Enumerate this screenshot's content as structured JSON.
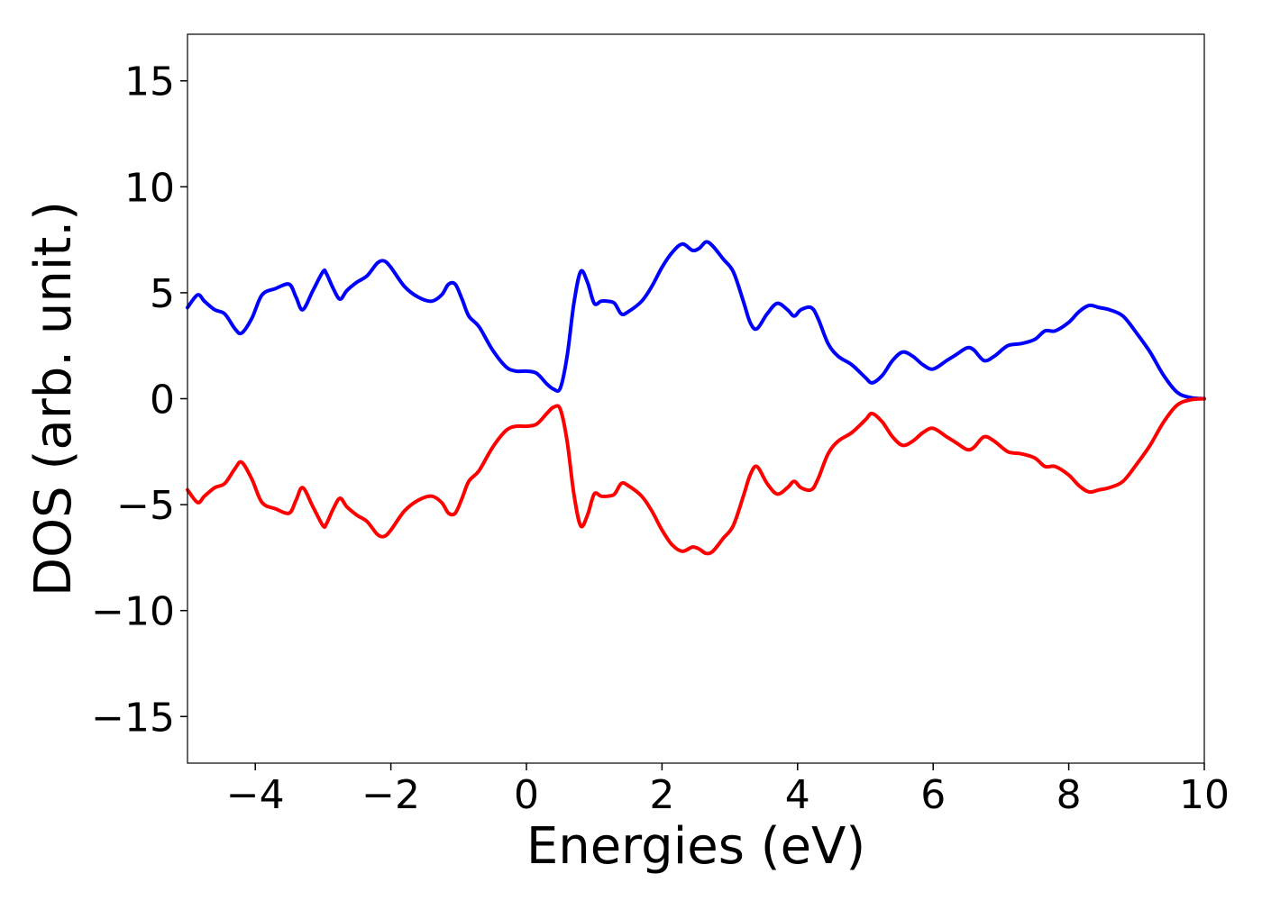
{
  "chart_data": {
    "type": "line",
    "title": "",
    "xlabel": "Energies (eV)",
    "ylabel": "DOS (arb. unit.)",
    "xlim": [
      -5,
      10
    ],
    "ylim": [
      -17.2,
      17.2
    ],
    "grid": false,
    "x_ticks": [
      -4,
      -2,
      0,
      2,
      4,
      6,
      8,
      10
    ],
    "x_tick_labels": [
      "−4",
      "−2",
      "0",
      "2",
      "4",
      "6",
      "8",
      "10"
    ],
    "y_ticks": [
      -15,
      -10,
      -5,
      0,
      5,
      10,
      15
    ],
    "y_tick_labels": [
      "−15",
      "−10",
      "−5",
      "0",
      "5",
      "10",
      "15"
    ],
    "series": [
      {
        "color": "#0000ff",
        "x": [
          -5.0,
          -4.85,
          -4.75,
          -4.6,
          -4.45,
          -4.3,
          -4.2,
          -4.05,
          -3.9,
          -3.7,
          -3.5,
          -3.4,
          -3.3,
          -3.15,
          -3.0,
          -2.95,
          -2.85,
          -2.75,
          -2.65,
          -2.5,
          -2.35,
          -2.2,
          -2.1,
          -2.0,
          -1.8,
          -1.6,
          -1.4,
          -1.25,
          -1.15,
          -1.05,
          -0.95,
          -0.85,
          -0.7,
          -0.5,
          -0.3,
          -0.15,
          0.0,
          0.15,
          0.3,
          0.4,
          0.5,
          0.6,
          0.7,
          0.8,
          0.9,
          1.0,
          1.1,
          1.2,
          1.3,
          1.4,
          1.5,
          1.7,
          1.85,
          2.0,
          2.15,
          2.3,
          2.45,
          2.55,
          2.65,
          2.75,
          2.9,
          3.05,
          3.2,
          3.3,
          3.4,
          3.55,
          3.7,
          3.85,
          3.95,
          4.05,
          4.2,
          4.3,
          4.45,
          4.6,
          4.8,
          5.0,
          5.1,
          5.25,
          5.4,
          5.55,
          5.7,
          5.85,
          6.0,
          6.2,
          6.35,
          6.5,
          6.6,
          6.75,
          6.9,
          7.1,
          7.3,
          7.5,
          7.65,
          7.8,
          8.0,
          8.15,
          8.3,
          8.45,
          8.6,
          8.8,
          9.0,
          9.2,
          9.4,
          9.6,
          9.8,
          10.0
        ],
        "y": [
          4.3,
          4.9,
          4.6,
          4.2,
          4.0,
          3.3,
          3.1,
          3.8,
          4.9,
          5.2,
          5.4,
          4.8,
          4.2,
          5.1,
          6.0,
          5.9,
          5.2,
          4.7,
          5.1,
          5.5,
          5.8,
          6.4,
          6.5,
          6.2,
          5.3,
          4.8,
          4.6,
          4.9,
          5.4,
          5.4,
          4.7,
          3.9,
          3.4,
          2.3,
          1.5,
          1.3,
          1.3,
          1.2,
          0.7,
          0.45,
          0.5,
          2.0,
          4.5,
          6.0,
          5.5,
          4.5,
          4.6,
          4.6,
          4.5,
          4.0,
          4.1,
          4.6,
          5.3,
          6.2,
          6.9,
          7.3,
          7.0,
          7.1,
          7.4,
          7.2,
          6.6,
          6.0,
          4.6,
          3.6,
          3.3,
          4.0,
          4.5,
          4.2,
          3.9,
          4.2,
          4.3,
          3.8,
          2.6,
          2.0,
          1.6,
          1.0,
          0.75,
          1.1,
          1.8,
          2.2,
          2.0,
          1.6,
          1.4,
          1.8,
          2.1,
          2.4,
          2.3,
          1.8,
          2.0,
          2.5,
          2.6,
          2.8,
          3.2,
          3.2,
          3.6,
          4.1,
          4.4,
          4.3,
          4.2,
          3.9,
          3.1,
          2.2,
          1.1,
          0.3,
          0.05,
          0.0
        ]
      },
      {
        "color": "#ff0000",
        "x": [
          -5.0,
          -4.85,
          -4.75,
          -4.6,
          -4.45,
          -4.3,
          -4.2,
          -4.05,
          -3.9,
          -3.7,
          -3.5,
          -3.4,
          -3.3,
          -3.15,
          -3.0,
          -2.95,
          -2.85,
          -2.75,
          -2.65,
          -2.5,
          -2.35,
          -2.2,
          -2.1,
          -2.0,
          -1.8,
          -1.6,
          -1.4,
          -1.25,
          -1.15,
          -1.05,
          -0.95,
          -0.85,
          -0.7,
          -0.5,
          -0.3,
          -0.15,
          0.0,
          0.15,
          0.3,
          0.4,
          0.5,
          0.6,
          0.7,
          0.8,
          0.9,
          1.0,
          1.1,
          1.2,
          1.3,
          1.4,
          1.5,
          1.7,
          1.85,
          2.0,
          2.15,
          2.3,
          2.45,
          2.55,
          2.65,
          2.75,
          2.9,
          3.05,
          3.2,
          3.3,
          3.4,
          3.55,
          3.7,
          3.85,
          3.95,
          4.05,
          4.2,
          4.3,
          4.45,
          4.6,
          4.8,
          5.0,
          5.1,
          5.25,
          5.4,
          5.55,
          5.7,
          5.85,
          6.0,
          6.2,
          6.35,
          6.5,
          6.6,
          6.75,
          6.9,
          7.1,
          7.3,
          7.5,
          7.65,
          7.8,
          8.0,
          8.15,
          8.3,
          8.45,
          8.6,
          8.8,
          9.0,
          9.2,
          9.4,
          9.6,
          9.8,
          10.0
        ],
        "y": [
          -4.3,
          -4.9,
          -4.6,
          -4.2,
          -4.0,
          -3.3,
          -3.0,
          -3.8,
          -4.9,
          -5.2,
          -5.4,
          -4.8,
          -4.2,
          -5.1,
          -6.0,
          -5.9,
          -5.2,
          -4.7,
          -5.1,
          -5.5,
          -5.8,
          -6.4,
          -6.5,
          -6.2,
          -5.3,
          -4.8,
          -4.6,
          -4.9,
          -5.4,
          -5.4,
          -4.7,
          -3.9,
          -3.4,
          -2.3,
          -1.5,
          -1.3,
          -1.3,
          -1.2,
          -0.7,
          -0.4,
          -0.5,
          -2.0,
          -4.5,
          -6.0,
          -5.5,
          -4.5,
          -4.6,
          -4.6,
          -4.5,
          -4.0,
          -4.1,
          -4.6,
          -5.3,
          -6.2,
          -6.9,
          -7.2,
          -7.0,
          -7.1,
          -7.3,
          -7.2,
          -6.6,
          -6.0,
          -4.6,
          -3.6,
          -3.2,
          -4.0,
          -4.5,
          -4.2,
          -3.9,
          -4.2,
          -4.3,
          -3.8,
          -2.6,
          -2.0,
          -1.6,
          -1.0,
          -0.7,
          -1.1,
          -1.8,
          -2.2,
          -2.0,
          -1.6,
          -1.4,
          -1.8,
          -2.1,
          -2.4,
          -2.3,
          -1.8,
          -2.0,
          -2.5,
          -2.6,
          -2.8,
          -3.2,
          -3.2,
          -3.6,
          -4.1,
          -4.4,
          -4.3,
          -4.2,
          -3.9,
          -3.1,
          -2.2,
          -1.1,
          -0.3,
          -0.05,
          0.0
        ]
      }
    ]
  }
}
